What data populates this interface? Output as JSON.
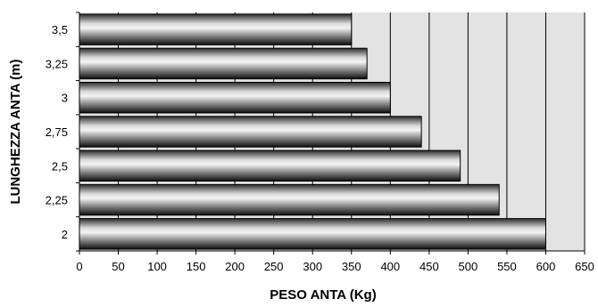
{
  "chart_data": {
    "type": "bar",
    "orientation": "horizontal",
    "title": "",
    "xlabel": "PESO ANTA (Kg)",
    "ylabel": "LUNGHEZZA ANTA (m)",
    "categories": [
      "2",
      "2,25",
      "2,5",
      "2,75",
      "3",
      "3,25",
      "3,5"
    ],
    "values": [
      600,
      540,
      490,
      440,
      400,
      370,
      350
    ],
    "xlim": [
      0,
      650
    ],
    "x_ticks": [
      "0",
      "50",
      "100",
      "150",
      "200",
      "250",
      "300",
      "350",
      "400",
      "450",
      "500",
      "550",
      "600",
      "650"
    ],
    "grid": true,
    "legend": "none",
    "colors": {
      "plot_background": "#e3e3e3",
      "grid": "#000000",
      "bar_dark": "#1a1a1a",
      "bar_light": "#f2f2f2"
    }
  }
}
